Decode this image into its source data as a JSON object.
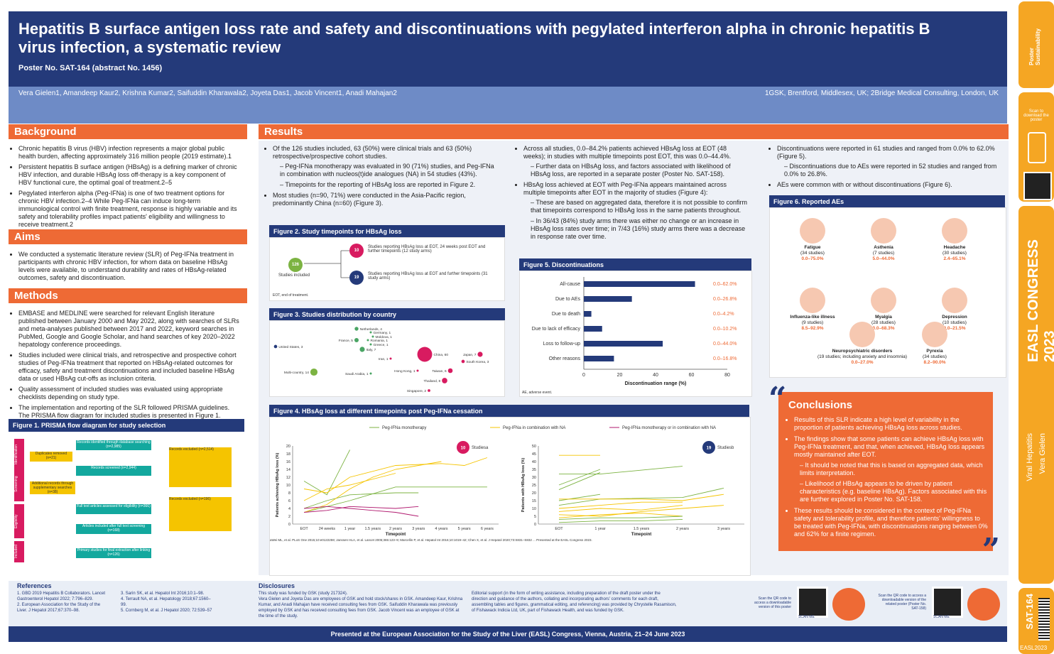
{
  "header": {
    "title": "Hepatitis B surface antigen loss rate and safety and discontinuations with pegylated interferon alpha in chronic hepatitis B virus infection, a systematic review",
    "poster_no": "Poster No. SAT-164 (abstract No. 1456)",
    "authors": "Vera Gielen1, Amandeep Kaur2, Krishna Kumar2, Saifuddin Kharawala2, Joyeta Das1, Jacob Vincent1, Anadi Mahajan2",
    "affiliations": "1GSK, Brentford, Middlesex, UK; 2Bridge Medical Consulting, London, UK"
  },
  "sidebar": {
    "scan_text": "Scan to download the poster",
    "congress": "EASL CONGRESS 2023",
    "topic": "Viral Hepatitis",
    "author": "Vera Gielen",
    "code": "SAT-164",
    "easl": "EASL2023"
  },
  "background": {
    "title": "Background",
    "items": [
      "Chronic hepatitis B virus (HBV) infection represents a major global public health burden, affecting approximately 316 million people (2019 estimate).1",
      "Persistent hepatitis B surface antigen (HBsAg) is a defining marker of chronic HBV infection, and durable HBsAg loss off-therapy is a key component of HBV functional cure, the optimal goal of treatment.2–5",
      "Pegylated interferon alpha (Peg-IFNa) is one of two treatment options for chronic HBV infection.2–4 While Peg-IFNa can induce long-term immunological control with finite treatment, response is highly variable and its safety and tolerability profiles impact patients' eligibility and willingness to receive treatment.2"
    ]
  },
  "aims": {
    "title": "Aims",
    "items": [
      "We conducted a systematic literature review (SLR) of Peg-IFNa treatment in participants with chronic HBV infection, for whom data on baseline HBsAg levels were available, to understand durability and rates of HBsAg-related outcomes, safety and discontinuation."
    ]
  },
  "methods": {
    "title": "Methods",
    "items": [
      "EMBASE and MEDLINE were searched for relevant English literature published between January 2000 and May 2022, along with searches of SLRs and meta-analyses published between 2017 and 2022, keyword searches in PubMed, Google and Google Scholar, and hand searches of key 2020–2022 hepatology conference proceedings.",
      "Studies included were clinical trials, and retrospective and prospective cohort studies of Peg-IFNa treatment that reported on HBsAg-related outcomes for efficacy, safety and treatment discontinuations and included baseline HBsAg data or used HBsAg cut-offs as inclusion criteria.",
      "Quality assessment of included studies was evaluated using appropriate checklists depending on study type.",
      "The implementation and reporting of the SLR followed PRISMA guidelines. The PRISMA flow diagram for included studies is presented in Figure 1."
    ]
  },
  "fig1": {
    "title": "Figure 1. PRISMA flow diagram for study selection",
    "phases": [
      "Identification",
      "Screening",
      "Eligibility",
      "Included"
    ],
    "boxes": [
      "Records identified through database searching (n=2,985)",
      "Duplicates removed (n=21)",
      "Records screened (n=2,944)",
      "Additional records through supplementary searches (n=38)",
      "Records excluded (n=2,514)",
      "Full text articles assessed for eligibility (n=366)",
      "Records excluded (n=196)",
      "Articles included after full text screening (n=168)",
      "Primary studies for final extraction after linking (n=126)"
    ]
  },
  "results": {
    "title": "Results",
    "col1": [
      {
        "t": "Of the 126 studies included, 63 (50%) were clinical trials and 63 (50%) retrospective/prospective cohort studies.",
        "sub": [
          "Peg-IFNa monotherapy was evaluated in 90 (71%) studies, and Peg-IFNa in combination with nucleos(t)ide analogues (NA) in 54 studies (43%).",
          "Timepoints for the reporting of HBsAg loss are reported in Figure 2."
        ]
      },
      {
        "t": "Most studies (n=90, 71%) were conducted in the Asia-Pacific region, predominantly China (n=60) (Figure 3).",
        "sub": []
      }
    ],
    "col2": [
      {
        "t": "Across all studies, 0.0–84.2% patients achieved HBsAg loss at EOT (48 weeks); in studies with multiple timepoints post EOT, this was 0.0–44.4%.",
        "sub": [
          "Further data on HBsAg loss, and factors associated with likelihood of HBsAg loss, are reported in a separate poster (Poster No. SAT-158)."
        ]
      },
      {
        "t": "HBsAg loss achieved at EOT with Peg-IFNa appears maintained across multiple timepoints after EOT in the majority of studies (Figure 4):",
        "sub": [
          "These are based on aggregated data, therefore it is not possible to confirm that timepoints correspond to HBsAg loss in the same patients throughout.",
          "In 36/43 (84%) study arms there was either no change or an increase in HBsAg loss rates over time; in 7/43 (16%) study arms there was a decrease in response rate over time."
        ]
      }
    ],
    "col3": [
      {
        "t": "Discontinuations were reported in 61 studies and ranged from 0.0% to 62.0% (Figure 5).",
        "sub": [
          "Discontinuations due to AEs were reported in 52 studies and ranged from 0.0% to 26.8%."
        ]
      },
      {
        "t": "AEs were common with or without discontinuations (Figure 6).",
        "sub": []
      }
    ]
  },
  "fig2": {
    "title": "Figure 2. Study timepoints for HBsAg loss",
    "total": "126",
    "total_label": "Studies included",
    "a_n": "10",
    "a_label": "Studies reporting HBsAg loss at EOT, 24 weeks post EOT and further timepoints (12 study arms)",
    "b_n": "19",
    "b_label": "Studies reporting HBsAg loss at EOT and further timepoints (31 study arms)",
    "note": "EOT, end of treatment."
  },
  "fig3": {
    "title": "Figure 3. Studies distribution by country",
    "points": [
      {
        "label": "United States, 3",
        "n": 3,
        "color": "#243a7a"
      },
      {
        "label": "Multi-country, 14",
        "n": 14,
        "color": "#7cb342"
      },
      {
        "label": "Netherlands, 4",
        "n": 4,
        "color": "#4aa564"
      },
      {
        "label": "Germany, 1",
        "n": 1,
        "color": "#4aa564"
      },
      {
        "label": "Moldova, 1",
        "n": 1,
        "color": "#4aa564"
      },
      {
        "label": "Romania, 1",
        "n": 1,
        "color": "#4aa564"
      },
      {
        "label": "Greece, 1",
        "n": 1,
        "color": "#4aa564"
      },
      {
        "label": "France, 5",
        "n": 5,
        "color": "#4aa564"
      },
      {
        "label": "Italy, 7",
        "n": 7,
        "color": "#4aa564"
      },
      {
        "label": "Iran, 1",
        "n": 1,
        "color": "#d81b60"
      },
      {
        "label": "Saudi Arabia, 1",
        "n": 1,
        "color": "#4aa564"
      },
      {
        "label": "China, 60",
        "n": 60,
        "color": "#d81b60"
      },
      {
        "label": "Hong Kong, 1",
        "n": 1,
        "color": "#d81b60"
      },
      {
        "label": "Taiwan, 6",
        "n": 6,
        "color": "#d81b60"
      },
      {
        "label": "Thailand, 8",
        "n": 8,
        "color": "#d81b60"
      },
      {
        "label": "Singapore, 2",
        "n": 2,
        "color": "#d81b60"
      },
      {
        "label": "South Korea, 3",
        "n": 3,
        "color": "#d81b60"
      },
      {
        "label": "Japan, 7",
        "n": 7,
        "color": "#d81b60"
      }
    ]
  },
  "fig4": {
    "title": "Figure 4. HBsAg loss at different timepoints post Peg-IFNa cessation",
    "legend": [
      "Peg-IFNa monotherapy",
      "Peg-IFNa in combination with NA",
      "Peg-IFNa monotherapy or in combination with NA"
    ],
    "left_badge": "10",
    "left_badge_label": "Studiesa",
    "right_badge": "19",
    "right_badge_label": "Studiesb",
    "ylabel": "Patients achieving HBsAg loss (%)",
    "ylabel2": "Patients with HBsAg loss (%)",
    "xlabel": "Timepoint",
    "footnote": "aWei ML, et al. PLoS One 2015;10:e0122259; Janssen HLA, et al. Lancet 2005;365:123–9; Marcellin P, et al. Hepatol Int 2016;10:1019–42; Chen X, et al. J Hepatol 2020;73:S831–S832 ... Presented at the EASL Congress 2023."
  },
  "fig5": {
    "title": "Figure 5. Discontinuations",
    "xlabel": "Discontinuation range (%)",
    "note": "AE, adverse event."
  },
  "fig6": {
    "title": "Figure 6. Reported AEs",
    "aes": [
      {
        "name": "Fatigue",
        "studies": "(34 studies)",
        "range": "0.0–75.0%"
      },
      {
        "name": "Asthenia",
        "studies": "(7 studies)",
        "range": "5.0–44.0%"
      },
      {
        "name": "Headache",
        "studies": "(30 studies)",
        "range": "2.4–65.1%"
      },
      {
        "name": "Influenza-like illness",
        "studies": "(9 studies)",
        "range": "8.5–92.9%"
      },
      {
        "name": "Myalgia",
        "studies": "(28 studies)",
        "range": "0.0–68.3%"
      },
      {
        "name": "Depression",
        "studies": "(10 studies)",
        "range": "0.0–21.5%"
      },
      {
        "name": "Neuropsychiatric disorders",
        "studies": "(19 studies; including anxiety and insomnia)",
        "range": "0.0–27.0%"
      },
      {
        "name": "Pyrexia",
        "studies": "(34 studies)",
        "range": "8.2–90.0%"
      }
    ]
  },
  "conclusions": {
    "title": "Conclusions",
    "items": [
      {
        "t": "Results of this SLR indicate a high level of variability in the proportion of patients achieving HBsAg loss across studies.",
        "sub": []
      },
      {
        "t": "The findings show that some patients can achieve HBsAg loss with Peg-IFNa treatment, and that, when achieved, HBsAg loss appears mostly maintained after EOT.",
        "sub": [
          "It should be noted that this is based on aggregated data, which limits interpretation.",
          "Likelihood of HBsAg appears to be driven by patient characteristics (e.g. baseline HBsAg). Factors associated with this are further explored in Poster No. SAT-158."
        ]
      },
      {
        "t": "These results should be considered in the context of Peg-IFNa safety and tolerability profile, and therefore patients' willingness to be treated with Peg-IFNa, with discontinuations ranging between 0% and 62% for a finite regimen.",
        "sub": []
      }
    ]
  },
  "references": {
    "title": "References",
    "items": [
      "1. GBD 2019 Hepatitis B Collaborators. Lancet Gastroenterol Hepatol 2022; 7:796–829.",
      "2. European Association for the Study of the Liver. J Hepatol 2017;67:370–98.",
      "3. Sarin SK, et al. Hepatol Int 2016;10:1–98.",
      "4. Terrault NA, et al. Hepatology 2018;67:1560–99.",
      "5. Cornberg M, et al. J Hepatol 2020; 72:539–57"
    ]
  },
  "disclosures": {
    "title": "Disclosures",
    "items": [
      "This study was funded by GSK (study 217324).",
      "Vera Gielen and Joyeta Das are employees of GSK and hold stock/shares in GSK. Amandeep Kaur, Krishna Kumar, and Anadi Mahajan have received consulting fees from GSK. Saifuddin Kharawala was previously employed by GSK and has received consulting fees from GSK. Jacob Vincent was an employee of GSK at the time of the study.",
      "Editorial support (in the form of writing assistance, including preparation of the draft poster under the direction and guidance of the authors, collating and incorporating authors' comments for each draft, assembling tables and figures, grammatical editing, and referencing) was provided by Chrystelle Rasamison, of Fishawack Indicia Ltd, UK, part of Fishawack Health, and was funded by GSK."
    ]
  },
  "qr": {
    "a": "Scan the QR code to access a downloadable version of this poster",
    "b": "Scan the QR code to access a downloadable version of the related poster (Poster No. SAT-158)",
    "scan": "SCAN ME"
  },
  "footer": "Presented at the European Association for the Study of the Liver (EASL) Congress, Vienna, Austria, 21–24 June 2023",
  "chart_data": [
    {
      "type": "bar",
      "title": "Figure 5. Discontinuations",
      "categories": [
        "All-cause",
        "Due to AEs",
        "Due to death",
        "Due to lack of efficacy",
        "Loss to follow-up",
        "Other reasons"
      ],
      "values": [
        62.0,
        26.8,
        4.2,
        10.2,
        44.0,
        16.8
      ],
      "range_labels": [
        "0.0–62.0%",
        "0.0–26.8%",
        "0.0–4.2%",
        "0.0–10.2%",
        "0.0–44.0%",
        "0.0–16.8%"
      ],
      "xlabel": "Discontinuation range (%)",
      "xlim": [
        0,
        80
      ],
      "xticks": [
        0,
        20,
        40,
        60,
        80
      ],
      "color": "#243a7a"
    },
    {
      "type": "line",
      "title": "Figure 4 (left)",
      "x": [
        "EOT",
        "24 weeks",
        "1 year",
        "1.5 years",
        "2 years",
        "3 years",
        "4 years",
        "5 years",
        "6 years"
      ],
      "ylim": [
        0,
        20
      ],
      "yticks": [
        0,
        2,
        4,
        6,
        8,
        10,
        12,
        14,
        16,
        18,
        20
      ],
      "series": [
        {
          "color": "#7cb342",
          "values": [
            11.0,
            7.5,
            19.0,
            null,
            null,
            null,
            null,
            null,
            null
          ]
        },
        {
          "color": "#7cb342",
          "values": [
            4.0,
            6.0,
            7.5,
            null,
            8.0,
            8.0,
            null,
            null,
            null
          ]
        },
        {
          "color": "#7cb342",
          "values": [
            3.0,
            4.5,
            6.0,
            null,
            9.5,
            null,
            null,
            null,
            9.5
          ]
        },
        {
          "color": "#f5c400",
          "values": [
            9.0,
            8.0,
            12.0,
            null,
            15.0,
            null,
            15.5,
            15.0,
            17.0
          ]
        },
        {
          "color": "#f5c400",
          "values": [
            3.0,
            5.0,
            9.0,
            12.0,
            14.0,
            15.0,
            16.0,
            null,
            null
          ]
        },
        {
          "color": "#f5c400",
          "values": [
            6.0,
            9.0,
            10.0,
            null,
            13.0,
            null,
            null,
            null,
            null
          ]
        },
        {
          "color": "#b0186e",
          "values": [
            4.0,
            4.5,
            4.0,
            3.5,
            3.0,
            2.0,
            null,
            null,
            null
          ]
        },
        {
          "color": "#b0186e",
          "values": [
            3.0,
            3.5,
            4.5,
            null,
            4.0,
            4.5,
            null,
            null,
            null
          ]
        }
      ]
    },
    {
      "type": "line",
      "title": "Figure 4 (right)",
      "x": [
        "EOT",
        "1 year",
        "1.5 years",
        "2 years",
        "3 years"
      ],
      "ylim": [
        0,
        50
      ],
      "yticks": [
        0,
        5,
        10,
        15,
        20,
        25,
        30,
        35,
        40,
        45,
        50
      ],
      "series": [
        {
          "color": "#f5c400",
          "values": [
            44,
            44,
            null,
            null,
            null
          ]
        },
        {
          "color": "#7cb342",
          "values": [
            25,
            35,
            null,
            null,
            null
          ]
        },
        {
          "color": "#7cb342",
          "values": [
            32,
            32,
            null,
            37,
            null
          ]
        },
        {
          "color": "#7cb342",
          "values": [
            22,
            33,
            null,
            null,
            null
          ]
        },
        {
          "color": "#7cb342",
          "values": [
            15,
            19,
            null,
            null,
            null
          ]
        },
        {
          "color": "#7cb342",
          "values": [
            12,
            16,
            null,
            17,
            23
          ]
        },
        {
          "color": "#f5c400",
          "values": [
            16,
            16,
            16,
            15,
            19
          ]
        },
        {
          "color": "#f5c400",
          "values": [
            10,
            12,
            14,
            14,
            null
          ]
        },
        {
          "color": "#f5c400",
          "values": [
            8,
            10,
            9,
            12,
            null
          ]
        },
        {
          "color": "#f5c400",
          "values": [
            6,
            5,
            8,
            10,
            12
          ]
        },
        {
          "color": "#f5c400",
          "values": [
            4,
            6,
            7,
            5,
            null
          ]
        },
        {
          "color": "#7cb342",
          "values": [
            3,
            4,
            4,
            5,
            null
          ]
        },
        {
          "color": "#7cb342",
          "values": [
            1,
            2,
            2,
            3,
            null
          ]
        }
      ]
    }
  ]
}
